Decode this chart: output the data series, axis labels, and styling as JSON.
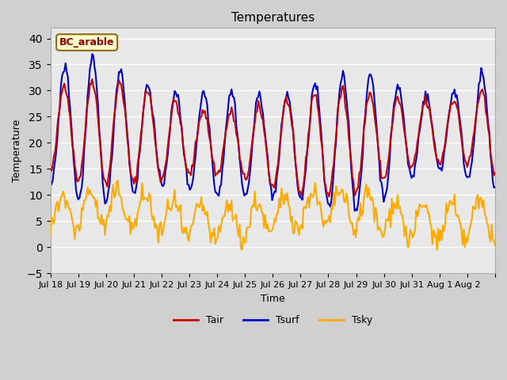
{
  "title": "Temperatures",
  "xlabel": "Time",
  "ylabel": "Temperature",
  "ylim": [
    -5,
    42
  ],
  "yticks": [
    -5,
    0,
    5,
    10,
    15,
    20,
    25,
    30,
    35,
    40
  ],
  "tair_color": "#cc0000",
  "tsurf_color": "#0000cc",
  "tsky_color": "#ffaa00",
  "legend_label": "BC_arable",
  "line_width": 1.5,
  "xtick_labels": [
    "Jul 18",
    "Jul 19",
    "Jul 20",
    "Jul 21",
    "Jul 22",
    "Jul 23",
    "Jul 24",
    "Jul 25",
    "Jul 26",
    "Jul 27",
    "Jul 28",
    "Jul 29",
    "Jul 30",
    "Jul 31",
    "Aug 1",
    "Aug 2",
    ""
  ]
}
